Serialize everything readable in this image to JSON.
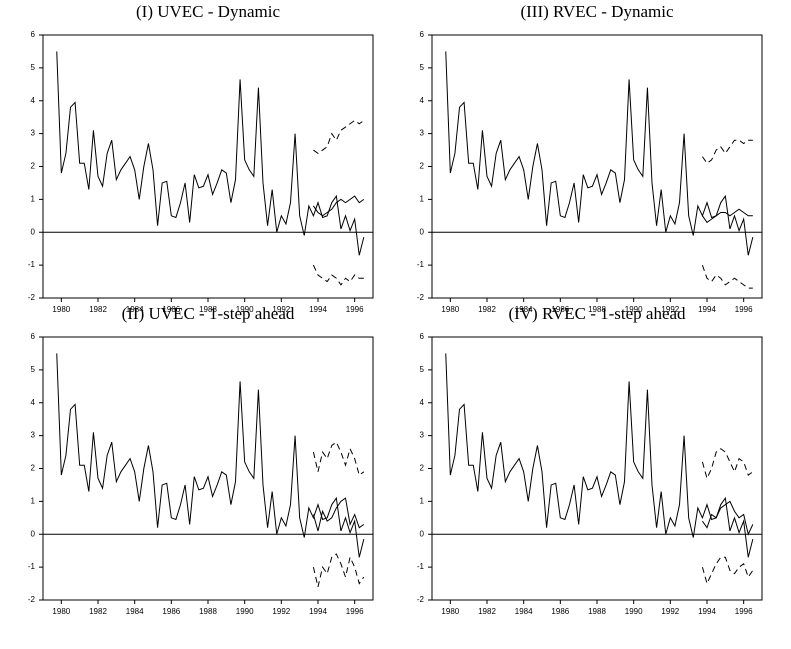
{
  "chart_data": [
    {
      "type": "line",
      "title": "(I) UVEC - Dynamic",
      "xlim": [
        1979.0,
        1997.0
      ],
      "xticks": [
        1980,
        1982,
        1984,
        1986,
        1988,
        1990,
        1992,
        1994,
        1996
      ],
      "ylim": [
        -2,
        6
      ],
      "yticks": [
        -2,
        -1,
        0,
        1,
        2,
        3,
        4,
        5,
        6
      ],
      "x": [
        1979.75,
        1980,
        1980.25,
        1980.5,
        1980.75,
        1981,
        1981.25,
        1981.5,
        1981.75,
        1982,
        1982.25,
        1982.5,
        1982.75,
        1983,
        1983.25,
        1983.5,
        1983.75,
        1984,
        1984.25,
        1984.5,
        1984.75,
        1985,
        1985.25,
        1985.5,
        1985.75,
        1986,
        1986.25,
        1986.5,
        1986.75,
        1987,
        1987.25,
        1987.5,
        1987.75,
        1988,
        1988.25,
        1988.5,
        1988.75,
        1989,
        1989.25,
        1989.5,
        1989.75,
        1990,
        1990.25,
        1990.5,
        1990.75,
        1991,
        1991.25,
        1991.5,
        1991.75,
        1992,
        1992.25,
        1992.5,
        1992.75,
        1993,
        1993.25,
        1993.5,
        1993.75,
        1994,
        1994.25,
        1994.5,
        1994.75,
        1995,
        1995.25,
        1995.5,
        1995.75,
        1996,
        1996.25,
        1996.5
      ],
      "series": [
        {
          "color": "#000000",
          "dashed": false,
          "values": [
            5.5,
            1.8,
            2.4,
            3.8,
            3.95,
            2.1,
            2.1,
            1.3,
            3.1,
            1.7,
            1.4,
            2.4,
            2.8,
            1.6,
            1.9,
            2.1,
            2.3,
            1.9,
            1.0,
            2.0,
            2.7,
            1.9,
            0.2,
            1.5,
            1.55,
            0.5,
            0.45,
            0.9,
            1.5,
            0.3,
            1.75,
            1.35,
            1.4,
            1.75,
            1.15,
            1.5,
            1.9,
            1.8,
            0.9,
            1.6,
            4.65,
            2.2,
            1.9,
            1.7,
            4.4,
            1.5,
            0.2,
            1.3,
            0.0,
            0.5,
            0.25,
            0.9,
            3.0,
            0.5,
            -0.1,
            0.8,
            0.5,
            0.9,
            0.45,
            0.5,
            0.9,
            1.1,
            0.1,
            0.5,
            0.05,
            0.4,
            -0.7,
            -0.15
          ]
        },
        {
          "color": "#000000",
          "dashed": false,
          "x": [
            1993.75,
            1994,
            1994.25,
            1994.5,
            1994.75,
            1995,
            1995.25,
            1995.5,
            1995.75,
            1996,
            1996.25,
            1996.5
          ],
          "values": [
            0.8,
            0.6,
            0.5,
            0.6,
            0.7,
            0.9,
            1.0,
            0.9,
            1.0,
            1.1,
            0.9,
            1.0
          ]
        },
        {
          "color": "#000000",
          "dashed": true,
          "x": [
            1993.75,
            1994,
            1994.25,
            1994.5,
            1994.75,
            1995,
            1995.25,
            1995.5,
            1995.75,
            1996,
            1996.25,
            1996.5
          ],
          "values": [
            2.5,
            2.4,
            2.5,
            2.6,
            3.0,
            2.8,
            3.1,
            3.2,
            3.3,
            3.4,
            3.3,
            3.4
          ]
        },
        {
          "color": "#000000",
          "dashed": true,
          "x": [
            1993.75,
            1994,
            1994.25,
            1994.5,
            1994.75,
            1995,
            1995.25,
            1995.5,
            1995.75,
            1996,
            1996.25,
            1996.5
          ],
          "values": [
            -1.0,
            -1.3,
            -1.4,
            -1.5,
            -1.3,
            -1.4,
            -1.6,
            -1.4,
            -1.5,
            -1.3,
            -1.4,
            -1.4
          ]
        }
      ]
    },
    {
      "type": "line",
      "title": "(III) RVEC - Dynamic",
      "xlim": [
        1979.0,
        1997.0
      ],
      "xticks": [
        1980,
        1982,
        1984,
        1986,
        1988,
        1990,
        1992,
        1994,
        1996
      ],
      "ylim": [
        -2,
        6
      ],
      "yticks": [
        -2,
        -1,
        0,
        1,
        2,
        3,
        4,
        5,
        6
      ],
      "x": [
        1979.75,
        1980,
        1980.25,
        1980.5,
        1980.75,
        1981,
        1981.25,
        1981.5,
        1981.75,
        1982,
        1982.25,
        1982.5,
        1982.75,
        1983,
        1983.25,
        1983.5,
        1983.75,
        1984,
        1984.25,
        1984.5,
        1984.75,
        1985,
        1985.25,
        1985.5,
        1985.75,
        1986,
        1986.25,
        1986.5,
        1986.75,
        1987,
        1987.25,
        1987.5,
        1987.75,
        1988,
        1988.25,
        1988.5,
        1988.75,
        1989,
        1989.25,
        1989.5,
        1989.75,
        1990,
        1990.25,
        1990.5,
        1990.75,
        1991,
        1991.25,
        1991.5,
        1991.75,
        1992,
        1992.25,
        1992.5,
        1992.75,
        1993,
        1993.25,
        1993.5,
        1993.75,
        1994,
        1994.25,
        1994.5,
        1994.75,
        1995,
        1995.25,
        1995.5,
        1995.75,
        1996,
        1996.25,
        1996.5
      ],
      "series": [
        {
          "color": "#000000",
          "dashed": false,
          "values": [
            5.5,
            1.8,
            2.4,
            3.8,
            3.95,
            2.1,
            2.1,
            1.3,
            3.1,
            1.7,
            1.4,
            2.4,
            2.8,
            1.6,
            1.9,
            2.1,
            2.3,
            1.9,
            1.0,
            2.0,
            2.7,
            1.9,
            0.2,
            1.5,
            1.55,
            0.5,
            0.45,
            0.9,
            1.5,
            0.3,
            1.75,
            1.35,
            1.4,
            1.75,
            1.15,
            1.5,
            1.9,
            1.8,
            0.9,
            1.6,
            4.65,
            2.2,
            1.9,
            1.7,
            4.4,
            1.5,
            0.2,
            1.3,
            0.0,
            0.5,
            0.25,
            0.9,
            3.0,
            0.5,
            -0.1,
            0.8,
            0.5,
            0.9,
            0.45,
            0.5,
            0.9,
            1.1,
            0.1,
            0.5,
            0.05,
            0.4,
            -0.7,
            -0.15
          ]
        },
        {
          "color": "#000000",
          "dashed": false,
          "x": [
            1993.75,
            1994,
            1994.25,
            1994.5,
            1994.75,
            1995,
            1995.25,
            1995.5,
            1995.75,
            1996,
            1996.25,
            1996.5
          ],
          "values": [
            0.5,
            0.3,
            0.4,
            0.5,
            0.6,
            0.6,
            0.5,
            0.6,
            0.7,
            0.6,
            0.5,
            0.5
          ]
        },
        {
          "color": "#000000",
          "dashed": true,
          "x": [
            1993.75,
            1994,
            1994.25,
            1994.5,
            1994.75,
            1995,
            1995.25,
            1995.5,
            1995.75,
            1996,
            1996.25,
            1996.5
          ],
          "values": [
            2.3,
            2.1,
            2.2,
            2.5,
            2.6,
            2.4,
            2.6,
            2.8,
            2.8,
            2.7,
            2.8,
            2.8
          ]
        },
        {
          "color": "#000000",
          "dashed": true,
          "x": [
            1993.75,
            1994,
            1994.25,
            1994.5,
            1994.75,
            1995,
            1995.25,
            1995.5,
            1995.75,
            1996,
            1996.25,
            1996.5
          ],
          "values": [
            -1.0,
            -1.4,
            -1.5,
            -1.3,
            -1.4,
            -1.6,
            -1.5,
            -1.4,
            -1.5,
            -1.6,
            -1.7,
            -1.7
          ]
        }
      ]
    },
    {
      "type": "line",
      "title": "(II) UVEC - 1-step ahead",
      "xlim": [
        1979.0,
        1997.0
      ],
      "xticks": [
        1980,
        1982,
        1984,
        1986,
        1988,
        1990,
        1992,
        1994,
        1996
      ],
      "ylim": [
        -2,
        6
      ],
      "yticks": [
        -2,
        -1,
        0,
        1,
        2,
        3,
        4,
        5,
        6
      ],
      "x": [
        1979.75,
        1980,
        1980.25,
        1980.5,
        1980.75,
        1981,
        1981.25,
        1981.5,
        1981.75,
        1982,
        1982.25,
        1982.5,
        1982.75,
        1983,
        1983.25,
        1983.5,
        1983.75,
        1984,
        1984.25,
        1984.5,
        1984.75,
        1985,
        1985.25,
        1985.5,
        1985.75,
        1986,
        1986.25,
        1986.5,
        1986.75,
        1987,
        1987.25,
        1987.5,
        1987.75,
        1988,
        1988.25,
        1988.5,
        1988.75,
        1989,
        1989.25,
        1989.5,
        1989.75,
        1990,
        1990.25,
        1990.5,
        1990.75,
        1991,
        1991.25,
        1991.5,
        1991.75,
        1992,
        1992.25,
        1992.5,
        1992.75,
        1993,
        1993.25,
        1993.5,
        1993.75,
        1994,
        1994.25,
        1994.5,
        1994.75,
        1995,
        1995.25,
        1995.5,
        1995.75,
        1996,
        1996.25,
        1996.5
      ],
      "series": [
        {
          "color": "#000000",
          "dashed": false,
          "values": [
            5.5,
            1.8,
            2.4,
            3.8,
            3.95,
            2.1,
            2.1,
            1.3,
            3.1,
            1.7,
            1.4,
            2.4,
            2.8,
            1.6,
            1.9,
            2.1,
            2.3,
            1.9,
            1.0,
            2.0,
            2.7,
            1.9,
            0.2,
            1.5,
            1.55,
            0.5,
            0.45,
            0.9,
            1.5,
            0.3,
            1.75,
            1.35,
            1.4,
            1.75,
            1.15,
            1.5,
            1.9,
            1.8,
            0.9,
            1.6,
            4.65,
            2.2,
            1.9,
            1.7,
            4.4,
            1.5,
            0.2,
            1.3,
            0.0,
            0.5,
            0.25,
            0.9,
            3.0,
            0.5,
            -0.1,
            0.8,
            0.5,
            0.9,
            0.45,
            0.5,
            0.9,
            1.1,
            0.1,
            0.5,
            0.05,
            0.4,
            -0.7,
            -0.15
          ]
        },
        {
          "color": "#000000",
          "dashed": false,
          "x": [
            1993.75,
            1994,
            1994.25,
            1994.5,
            1994.75,
            1995,
            1995.25,
            1995.5,
            1995.75,
            1996,
            1996.25,
            1996.5
          ],
          "values": [
            0.6,
            0.1,
            0.7,
            0.4,
            0.5,
            0.8,
            1.0,
            1.1,
            0.3,
            0.6,
            0.2,
            0.3
          ]
        },
        {
          "color": "#000000",
          "dashed": true,
          "x": [
            1993.75,
            1994,
            1994.25,
            1994.5,
            1994.75,
            1995,
            1995.25,
            1995.5,
            1995.75,
            1996,
            1996.25,
            1996.5
          ],
          "values": [
            2.5,
            1.9,
            2.5,
            2.3,
            2.7,
            2.8,
            2.5,
            2.1,
            2.6,
            2.3,
            1.8,
            1.9
          ]
        },
        {
          "color": "#000000",
          "dashed": true,
          "x": [
            1993.75,
            1994,
            1994.25,
            1994.5,
            1994.75,
            1995,
            1995.25,
            1995.5,
            1995.75,
            1996,
            1996.25,
            1996.5
          ],
          "values": [
            -1.0,
            -1.6,
            -1.0,
            -1.2,
            -0.7,
            -0.6,
            -0.9,
            -1.3,
            -0.7,
            -1.0,
            -1.5,
            -1.3
          ]
        }
      ]
    },
    {
      "type": "line",
      "title": "(IV) RVEC - 1-step ahead",
      "xlim": [
        1979.0,
        1997.0
      ],
      "xticks": [
        1980,
        1982,
        1984,
        1986,
        1988,
        1990,
        1992,
        1994,
        1996
      ],
      "ylim": [
        -2,
        6
      ],
      "yticks": [
        -2,
        -1,
        0,
        1,
        2,
        3,
        4,
        5,
        6
      ],
      "x": [
        1979.75,
        1980,
        1980.25,
        1980.5,
        1980.75,
        1981,
        1981.25,
        1981.5,
        1981.75,
        1982,
        1982.25,
        1982.5,
        1982.75,
        1983,
        1983.25,
        1983.5,
        1983.75,
        1984,
        1984.25,
        1984.5,
        1984.75,
        1985,
        1985.25,
        1985.5,
        1985.75,
        1986,
        1986.25,
        1986.5,
        1986.75,
        1987,
        1987.25,
        1987.5,
        1987.75,
        1988,
        1988.25,
        1988.5,
        1988.75,
        1989,
        1989.25,
        1989.5,
        1989.75,
        1990,
        1990.25,
        1990.5,
        1990.75,
        1991,
        1991.25,
        1991.5,
        1991.75,
        1992,
        1992.25,
        1992.5,
        1992.75,
        1993,
        1993.25,
        1993.5,
        1993.75,
        1994,
        1994.25,
        1994.5,
        1994.75,
        1995,
        1995.25,
        1995.5,
        1995.75,
        1996,
        1996.25,
        1996.5
      ],
      "series": [
        {
          "color": "#000000",
          "dashed": false,
          "values": [
            5.5,
            1.8,
            2.4,
            3.8,
            3.95,
            2.1,
            2.1,
            1.3,
            3.1,
            1.7,
            1.4,
            2.4,
            2.8,
            1.6,
            1.9,
            2.1,
            2.3,
            1.9,
            1.0,
            2.0,
            2.7,
            1.9,
            0.2,
            1.5,
            1.55,
            0.5,
            0.45,
            0.9,
            1.5,
            0.3,
            1.75,
            1.35,
            1.4,
            1.75,
            1.15,
            1.5,
            1.9,
            1.8,
            0.9,
            1.6,
            4.65,
            2.2,
            1.9,
            1.7,
            4.4,
            1.5,
            0.2,
            1.3,
            0.0,
            0.5,
            0.25,
            0.9,
            3.0,
            0.5,
            -0.1,
            0.8,
            0.5,
            0.9,
            0.45,
            0.5,
            0.9,
            1.1,
            0.1,
            0.5,
            0.05,
            0.4,
            -0.7,
            -0.15
          ]
        },
        {
          "color": "#000000",
          "dashed": false,
          "x": [
            1993.75,
            1994,
            1994.25,
            1994.5,
            1994.75,
            1995,
            1995.25,
            1995.5,
            1995.75,
            1996,
            1996.25,
            1996.5
          ],
          "values": [
            0.4,
            0.2,
            0.6,
            0.5,
            0.8,
            0.9,
            1.0,
            0.7,
            0.5,
            0.6,
            0.0,
            0.3
          ]
        },
        {
          "color": "#000000",
          "dashed": true,
          "x": [
            1993.75,
            1994,
            1994.25,
            1994.5,
            1994.75,
            1995,
            1995.25,
            1995.5,
            1995.75,
            1996,
            1996.25,
            1996.5
          ],
          "values": [
            2.2,
            1.7,
            2.0,
            2.5,
            2.6,
            2.5,
            2.2,
            1.9,
            2.3,
            2.2,
            1.8,
            1.9
          ]
        },
        {
          "color": "#000000",
          "dashed": true,
          "x": [
            1993.75,
            1994,
            1994.25,
            1994.5,
            1994.75,
            1995,
            1995.25,
            1995.5,
            1995.75,
            1996,
            1996.25,
            1996.5
          ],
          "values": [
            -1.0,
            -1.5,
            -1.2,
            -0.9,
            -0.7,
            -0.7,
            -1.1,
            -1.2,
            -1.0,
            -0.9,
            -1.3,
            -1.1
          ]
        }
      ]
    }
  ]
}
